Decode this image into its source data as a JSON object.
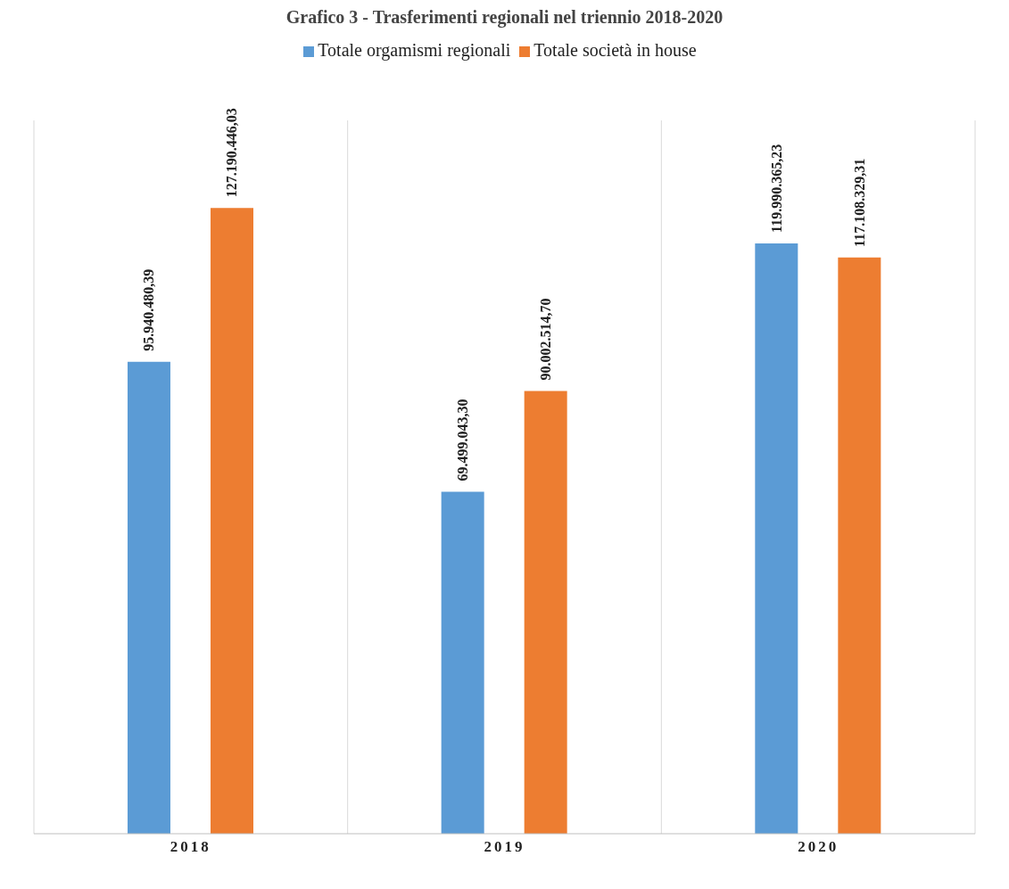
{
  "chart_data": {
    "type": "bar",
    "title": "Grafico 3 - Trasferimenti regionali nel triennio 2018-2020",
    "categories": [
      "2018",
      "2019",
      "2020"
    ],
    "series": [
      {
        "name": "Totale orgamismi regionali",
        "color": "#5b9bd5",
        "values": [
          95940480.39,
          69499043.3,
          119990365.23
        ],
        "value_labels": [
          "95.940.480,39",
          "69.499.043,30",
          "119.990.365,23"
        ]
      },
      {
        "name": "Totale società in house",
        "color": "#ed7d31",
        "values": [
          127190446.03,
          90002514.7,
          117108329.31
        ],
        "value_labels": [
          "127.190.446,03",
          "90.002.514,70",
          "117.108.329,31"
        ]
      }
    ],
    "grid": "x",
    "legend": "top"
  }
}
